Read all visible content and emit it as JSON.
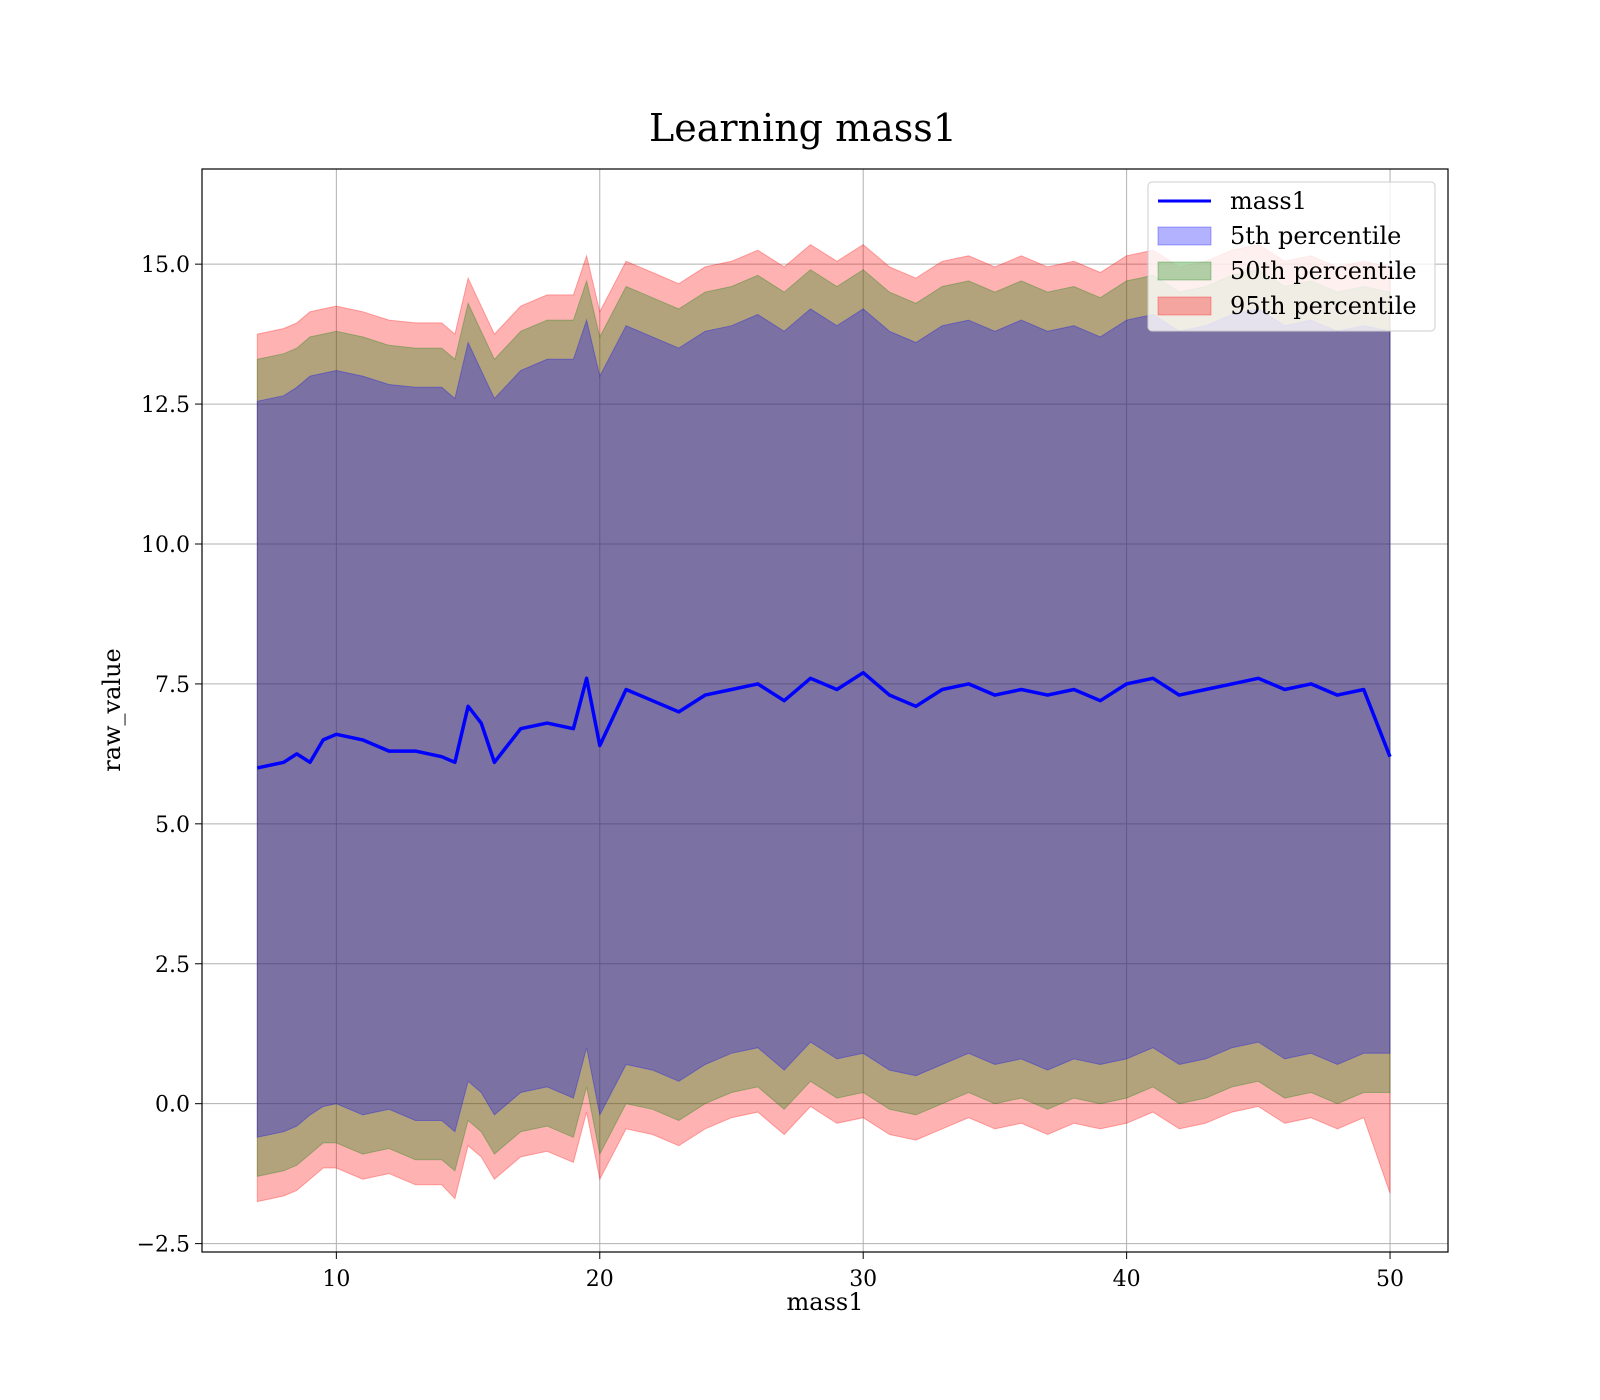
{
  "chart_data": {
    "type": "area",
    "title": "Learning mass1",
    "xlabel": "mass1",
    "ylabel": "raw_value",
    "xlim": [
      4.9,
      52.2
    ],
    "ylim": [
      -2.65,
      16.7
    ],
    "x_ticks": [
      10,
      20,
      30,
      40,
      50
    ],
    "x_tick_labels": [
      "10",
      "20",
      "30",
      "40",
      "50"
    ],
    "y_ticks": [
      -2.5,
      0.0,
      2.5,
      5.0,
      7.5,
      10.0,
      12.5,
      15.0
    ],
    "y_tick_labels": [
      "−2.5",
      "0.0",
      "2.5",
      "5.0",
      "7.5",
      "10.0",
      "12.5",
      "15.0"
    ],
    "grid": true,
    "legend_position": "top-right",
    "x": [
      7.0,
      8.0,
      8.5,
      9.0,
      9.5,
      10.0,
      11.0,
      12.0,
      13.0,
      14.0,
      14.5,
      15.0,
      15.5,
      16.0,
      17.0,
      18.0,
      19.0,
      19.5,
      20.0,
      21.0,
      22.0,
      23.0,
      24.0,
      25.0,
      26.0,
      27.0,
      28.0,
      29.0,
      30.0,
      31.0,
      32.0,
      33.0,
      34.0,
      35.0,
      36.0,
      37.0,
      38.0,
      39.0,
      40.0,
      41.0,
      42.0,
      43.0,
      44.0,
      45.0,
      46.0,
      47.0,
      48.0,
      49.0,
      50.0
    ],
    "series": [
      {
        "name": "mass1",
        "kind": "line",
        "color": "#0000ff",
        "values": [
          6.0,
          6.1,
          6.25,
          6.1,
          6.5,
          6.6,
          6.5,
          6.3,
          6.3,
          6.2,
          6.1,
          7.1,
          6.8,
          6.1,
          6.7,
          6.8,
          6.7,
          7.6,
          6.4,
          7.4,
          7.2,
          7.0,
          7.3,
          7.4,
          7.5,
          7.2,
          7.6,
          7.4,
          7.7,
          7.3,
          7.1,
          7.4,
          7.5,
          7.3,
          7.4,
          7.3,
          7.4,
          7.2,
          7.5,
          7.6,
          7.3,
          7.4,
          7.5,
          7.6,
          7.4,
          7.5,
          7.3,
          7.4,
          6.2
        ]
      },
      {
        "name": "5th percentile",
        "kind": "band",
        "color": "#0000ff",
        "lower": [
          -0.6,
          -0.5,
          -0.4,
          -0.2,
          -0.05,
          0.0,
          -0.2,
          -0.1,
          -0.3,
          -0.3,
          -0.5,
          0.4,
          0.2,
          -0.2,
          0.2,
          0.3,
          0.1,
          1.0,
          -0.2,
          0.7,
          0.6,
          0.4,
          0.7,
          0.9,
          1.0,
          0.6,
          1.1,
          0.8,
          0.9,
          0.6,
          0.5,
          0.7,
          0.9,
          0.7,
          0.8,
          0.6,
          0.8,
          0.7,
          0.8,
          1.0,
          0.7,
          0.8,
          1.0,
          1.1,
          0.8,
          0.9,
          0.7,
          0.9,
          0.9
        ],
        "upper": [
          12.55,
          12.65,
          12.8,
          13.0,
          13.05,
          13.1,
          13.0,
          12.85,
          12.8,
          12.8,
          12.6,
          13.6,
          13.1,
          12.6,
          13.1,
          13.3,
          13.3,
          14.0,
          13.0,
          13.9,
          13.7,
          13.5,
          13.8,
          13.9,
          14.1,
          13.8,
          14.2,
          13.9,
          14.2,
          13.8,
          13.6,
          13.9,
          14.0,
          13.8,
          14.0,
          13.8,
          13.9,
          13.7,
          14.0,
          14.1,
          13.8,
          13.9,
          14.1,
          14.2,
          13.9,
          14.0,
          13.8,
          13.9,
          13.8
        ]
      },
      {
        "name": "50th percentile",
        "kind": "band",
        "color": "#008000",
        "lower": [
          -1.3,
          -1.2,
          -1.1,
          -0.9,
          -0.7,
          -0.7,
          -0.9,
          -0.8,
          -1.0,
          -1.0,
          -1.2,
          -0.3,
          -0.5,
          -0.9,
          -0.5,
          -0.4,
          -0.6,
          0.3,
          -0.9,
          0.0,
          -0.1,
          -0.3,
          0.0,
          0.2,
          0.3,
          -0.1,
          0.4,
          0.1,
          0.2,
          -0.1,
          -0.2,
          0.0,
          0.2,
          0.0,
          0.1,
          -0.1,
          0.1,
          0.0,
          0.1,
          0.3,
          0.0,
          0.1,
          0.3,
          0.4,
          0.1,
          0.2,
          0.0,
          0.2,
          0.2
        ],
        "upper": [
          13.3,
          13.4,
          13.5,
          13.7,
          13.75,
          13.8,
          13.7,
          13.55,
          13.5,
          13.5,
          13.3,
          14.3,
          13.8,
          13.3,
          13.8,
          14.0,
          14.0,
          14.7,
          13.7,
          14.6,
          14.4,
          14.2,
          14.5,
          14.6,
          14.8,
          14.5,
          14.9,
          14.6,
          14.9,
          14.5,
          14.3,
          14.6,
          14.7,
          14.5,
          14.7,
          14.5,
          14.6,
          14.4,
          14.7,
          14.8,
          14.5,
          14.6,
          14.8,
          14.9,
          14.6,
          14.7,
          14.5,
          14.6,
          14.5
        ]
      },
      {
        "name": "95th percentile",
        "kind": "band",
        "color": "#ff0000",
        "lower": [
          -1.75,
          -1.65,
          -1.55,
          -1.35,
          -1.15,
          -1.15,
          -1.35,
          -1.25,
          -1.45,
          -1.45,
          -1.7,
          -0.75,
          -0.95,
          -1.35,
          -0.95,
          -0.85,
          -1.05,
          -0.15,
          -1.35,
          -0.45,
          -0.55,
          -0.75,
          -0.45,
          -0.25,
          -0.15,
          -0.55,
          -0.05,
          -0.35,
          -0.25,
          -0.55,
          -0.65,
          -0.45,
          -0.25,
          -0.45,
          -0.35,
          -0.55,
          -0.35,
          -0.45,
          -0.35,
          -0.15,
          -0.45,
          -0.35,
          -0.15,
          -0.05,
          -0.35,
          -0.25,
          -0.45,
          -0.25,
          -1.6
        ],
        "upper": [
          13.75,
          13.85,
          13.95,
          14.15,
          14.2,
          14.25,
          14.15,
          14.0,
          13.95,
          13.95,
          13.75,
          14.75,
          14.25,
          13.75,
          14.25,
          14.45,
          14.45,
          15.15,
          14.15,
          15.05,
          14.85,
          14.65,
          14.95,
          15.05,
          15.25,
          14.95,
          15.35,
          15.05,
          15.35,
          14.95,
          14.75,
          15.05,
          15.15,
          14.95,
          15.15,
          14.95,
          15.05,
          14.85,
          15.15,
          15.25,
          14.95,
          15.05,
          15.25,
          15.35,
          15.05,
          15.15,
          14.95,
          15.05,
          14.95
        ]
      }
    ]
  }
}
